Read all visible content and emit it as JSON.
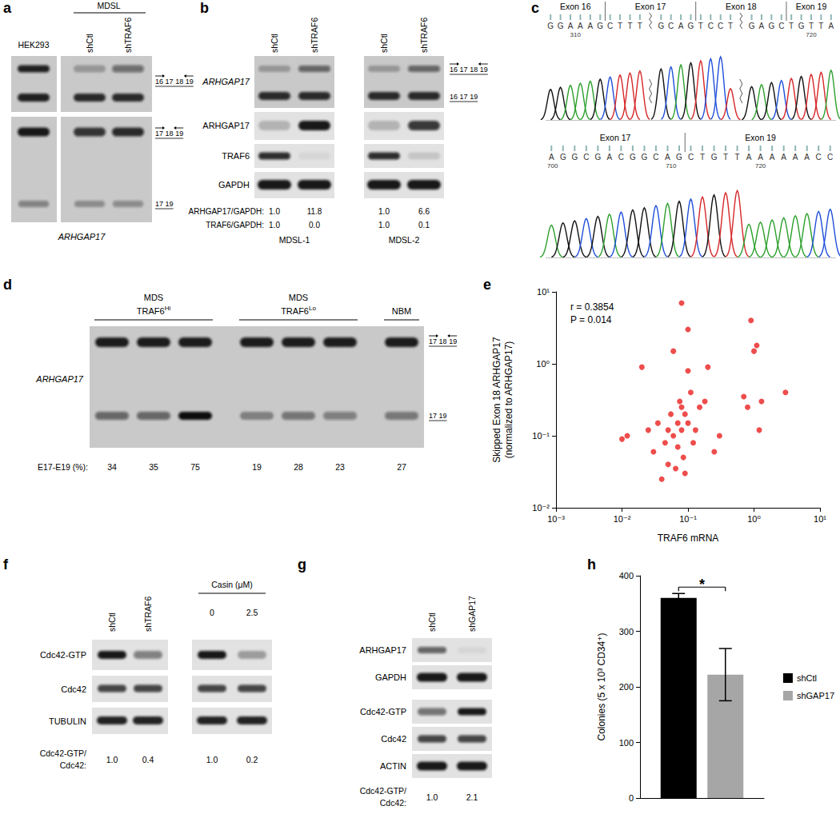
{
  "chart_data": [
    {
      "type": "scatter",
      "xlabel": "TRAF6 mRNA",
      "ylabel": [
        "Skipped Exon 18 ARHGAP17",
        "(normalized to ARHGAP17)"
      ],
      "annotations": [
        "r = 0.3854",
        "P = 0.014"
      ],
      "log": true,
      "grid": false,
      "color": "#e8211f",
      "marker": "circle",
      "x": [
        0.01,
        0.012,
        0.02,
        0.025,
        0.03,
        0.035,
        0.04,
        0.045,
        0.05,
        0.05,
        0.055,
        0.06,
        0.06,
        0.065,
        0.07,
        0.07,
        0.075,
        0.08,
        0.08,
        0.08,
        0.085,
        0.09,
        0.09,
        0.1,
        0.1,
        0.1,
        0.11,
        0.12,
        0.13,
        0.15,
        0.18,
        0.2,
        0.25,
        0.3,
        0.7,
        0.8,
        0.9,
        1.0,
        1.1,
        1.2,
        1.3,
        3.0
      ],
      "values": [
        0.09,
        0.1,
        0.9,
        0.12,
        0.06,
        0.15,
        0.025,
        0.08,
        0.04,
        0.12,
        0.2,
        1.5,
        0.1,
        0.035,
        0.15,
        0.07,
        0.3,
        7,
        0.25,
        0.12,
        0.05,
        0.2,
        0.03,
        3,
        0.8,
        0.15,
        0.4,
        0.08,
        0.12,
        0.25,
        0.3,
        0.9,
        0.06,
        0.1,
        0.35,
        0.25,
        4,
        1.5,
        1.8,
        0.12,
        0.3,
        0.4
      ],
      "xlim": [
        0.001,
        10
      ],
      "ylim": [
        0.01,
        10
      ],
      "xticks": [
        {
          "value": 0.001,
          "label": "10⁻³"
        },
        {
          "value": 0.01,
          "label": "10⁻²"
        },
        {
          "value": 0.1,
          "label": "10⁻¹"
        },
        {
          "value": 1,
          "label": "10⁰"
        },
        {
          "value": 10,
          "label": "10¹"
        }
      ],
      "yticks": [
        {
          "value": 0.01,
          "label": "10⁻²"
        },
        {
          "value": 0.1,
          "label": "10⁻¹"
        },
        {
          "value": 1,
          "label": "10⁰"
        },
        {
          "value": 10,
          "label": "10¹"
        }
      ]
    },
    {
      "type": "bar",
      "ylabel": "Colonies (5 x 10³ CD34⁺)",
      "categories": [
        null
      ],
      "series": [
        {
          "name": "shCtl",
          "color": "#000000",
          "values": [
            360
          ],
          "errors": [
            8
          ]
        },
        {
          "name": "shGAP17",
          "color": "#a6a6a6",
          "values": [
            222
          ],
          "errors": [
            47
          ]
        }
      ],
      "annotations": [
        "*"
      ],
      "ylim": [
        0,
        400
      ],
      "yticks": [
        0,
        100,
        200,
        300,
        400
      ],
      "legend": "right",
      "grid": false,
      "tick_labels": "y"
    }
  ],
  "panels": {
    "a": {
      "label": "a",
      "lanes": [
        "HEK293",
        "shCtl",
        "shTRAF6"
      ],
      "group": "MDSL",
      "gene": "ARHGAP17",
      "products": [
        {
          "exons": [
            "16",
            "17",
            "18",
            "19"
          ],
          "arrows": true
        },
        {
          "exons": [
            "17",
            "18",
            "19"
          ],
          "arrows": true
        },
        {
          "exons": [
            "17",
            "19"
          ],
          "arrows": false
        }
      ]
    },
    "b": {
      "label": "b",
      "lanes": [
        "shCtl",
        "shTRAF6",
        "shCtl",
        "shTRAF6"
      ],
      "gene": "ARHGAP17",
      "products": [
        {
          "exons": [
            "16",
            "17",
            "18",
            "19"
          ],
          "arrows": true
        },
        {
          "exons": [
            "16",
            "17",
            "19"
          ],
          "arrows": false
        }
      ],
      "blots": [
        "ARHGAP17",
        "TRAF6",
        "GAPDH"
      ],
      "ratios": [
        {
          "label": "ARHGAP17/GAPDH:",
          "values": [
            "1.0",
            "11.8",
            "1.0",
            "6.6"
          ]
        },
        {
          "label": "TRAF6/GAPDH:",
          "values": [
            "1.0",
            "0.0",
            "1.0",
            "0.1"
          ]
        }
      ],
      "groups": [
        "MDSL-1",
        "MDSL-2"
      ]
    },
    "c": {
      "label": "c",
      "tracks": [
        [
          {
            "exon": "Exon 16",
            "segments": [
              {
                "seq": "GGAAAG",
                "positions": [
                  "310"
                ]
              }
            ]
          },
          {
            "exon": "Exon 17",
            "segments": [
              {
                "seq": "CTTT"
              },
              {
                "seq": "GCAG"
              }
            ]
          },
          {
            "exon": "Exon 18",
            "segments": [
              {
                "seq": "TCCT"
              },
              {
                "seq": "GAGC"
              }
            ]
          },
          {
            "exon": "Exon 19",
            "segments": [
              {
                "seq": "TGTTA",
                "positions": [
                  "720"
                ]
              }
            ]
          }
        ],
        [
          {
            "exon": "Exon 17",
            "segments": [
              {
                "seq": "AGGCGACGGCAG",
                "positions": [
                  "700",
                  "710"
                ]
              }
            ]
          },
          {
            "exon": "Exon 19",
            "segments": [
              {
                "seq": "CTGTTAAAAAACC",
                "positions": [
                  "720"
                ]
              }
            ]
          }
        ]
      ]
    },
    "d": {
      "label": "d",
      "gene": "ARHGAP17",
      "groups": [
        {
          "lines": [
            "MDS",
            "TRAF6"
          ],
          "sup": "Hi",
          "pct": [
            34,
            35,
            75
          ]
        },
        {
          "lines": [
            "MDS",
            "TRAF6"
          ],
          "sup": "Lo",
          "pct": [
            19,
            28,
            23
          ]
        },
        {
          "lines": [
            "NBM"
          ],
          "pct": [
            27
          ]
        }
      ],
      "pct_label": "E17-E19 (%):",
      "products": [
        {
          "exons": [
            "17",
            "18",
            "19"
          ],
          "arrows": true
        },
        {
          "exons": [
            "17",
            "19"
          ],
          "arrows": false
        }
      ]
    },
    "e": {
      "label": "e"
    },
    "f": {
      "label": "f",
      "lanes": [
        "shCtl",
        "shTRAF6"
      ],
      "treatment": {
        "label": "Casin (μM)",
        "doses": [
          "0",
          "2.5"
        ]
      },
      "blots": [
        "Cdc42-GTP",
        "Cdc42",
        "TUBULIN"
      ],
      "ratio": {
        "label": [
          "Cdc42-GTP/",
          "Cdc42:"
        ],
        "values": [
          "1.0",
          "0.4",
          "1.0",
          "0.2"
        ]
      }
    },
    "g": {
      "label": "g",
      "lanes": [
        "shCtl",
        "shGAP17"
      ],
      "blots": [
        "ARHGAP17",
        "GAPDH",
        "Cdc42-GTP",
        "Cdc42",
        "ACTIN"
      ],
      "ratio": {
        "label": [
          "Cdc42-GTP/",
          "Cdc42:"
        ],
        "values": [
          "1.0",
          "2.1"
        ]
      }
    },
    "h": {
      "label": "h"
    }
  }
}
